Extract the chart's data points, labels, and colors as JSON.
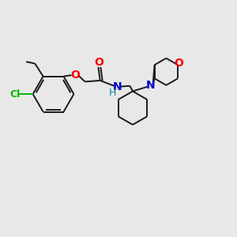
{
  "background_color": "#e8e8e8",
  "bond_color": "#1a1a1a",
  "cl_color": "#00bb00",
  "o_color": "#ff0000",
  "n_color": "#0000cc",
  "h_color": "#008888",
  "line_width": 1.4,
  "figsize": [
    3.0,
    3.0
  ],
  "dpi": 100,
  "xlim": [
    0,
    10
  ],
  "ylim": [
    0,
    10
  ]
}
